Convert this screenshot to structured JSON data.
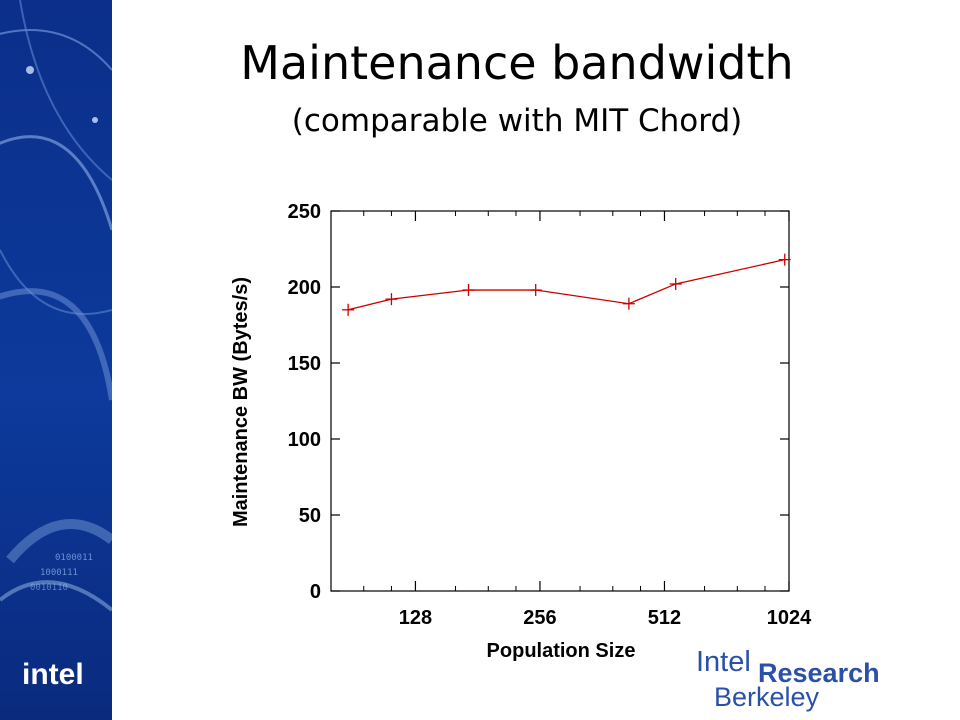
{
  "slide": {
    "title": "Maintenance bandwidth",
    "subtitle": "(comparable with MIT Chord)"
  },
  "branding": {
    "left_logo_text": "intel",
    "intel_word": "Intel",
    "research_word": "Research",
    "berkeley_word": "Berkeley",
    "sidebar_color": "#0b2f8a",
    "brand_color": "#2a50a8"
  },
  "chart_data": {
    "type": "line",
    "x_scale": "log2",
    "xlabel": "Population Size",
    "ylabel": "Maintenance BW (Bytes/s)",
    "xlim": [
      80,
      1024
    ],
    "ylim": [
      0,
      250
    ],
    "x_ticks": [
      128,
      256,
      512,
      1024
    ],
    "y_ticks": [
      0,
      50,
      100,
      150,
      200,
      250
    ],
    "grid": false,
    "line_color": "#cc0000",
    "series": [
      {
        "x": [
          88,
          112,
          172,
          250,
          420,
          545,
          1000
        ],
        "y": [
          185,
          192,
          198,
          198,
          189,
          202,
          218
        ]
      }
    ]
  }
}
